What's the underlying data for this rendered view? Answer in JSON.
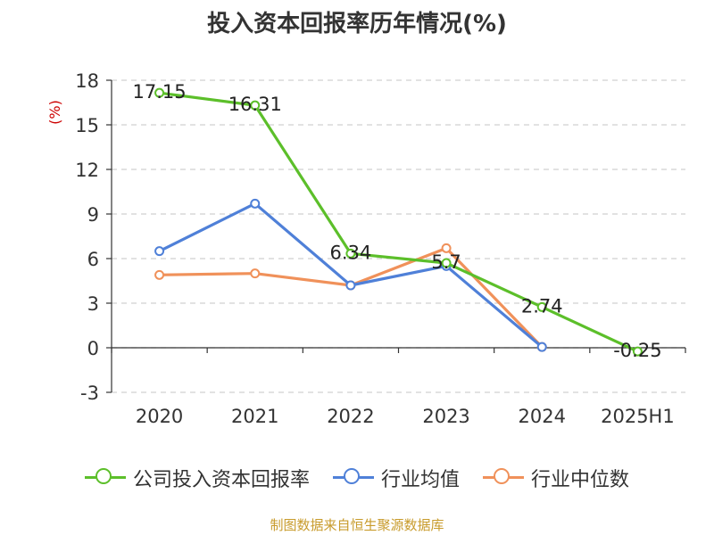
{
  "chart_data": {
    "type": "line",
    "title": "投入资本回报率历年情况(%)",
    "ylabel": "(%)",
    "categories": [
      "2020",
      "2021",
      "2022",
      "2023",
      "2024",
      "2025H1"
    ],
    "ylim": [
      -3,
      18
    ],
    "yticks": [
      -3,
      0,
      3,
      6,
      9,
      12,
      15,
      18
    ],
    "grid": true,
    "legend_position": "bottom",
    "series": [
      {
        "name": "公司投入资本回报率",
        "color": "#5cbf2a",
        "values": [
          17.15,
          16.31,
          6.34,
          5.7,
          2.74,
          -0.25
        ],
        "labels": [
          "17.15",
          "16.31",
          "6.34",
          "5.7",
          "2.74",
          "-0.25"
        ],
        "show_labels": true
      },
      {
        "name": "行业均值",
        "color": "#4f80d8",
        "values": [
          6.5,
          9.7,
          4.2,
          5.5,
          0.05,
          null
        ],
        "show_labels": false
      },
      {
        "name": "行业中位数",
        "color": "#f0915a",
        "values": [
          4.9,
          5.0,
          4.2,
          6.7,
          0.05,
          null
        ],
        "show_labels": false
      }
    ]
  },
  "source": "制图数据来自恒生聚源数据库"
}
